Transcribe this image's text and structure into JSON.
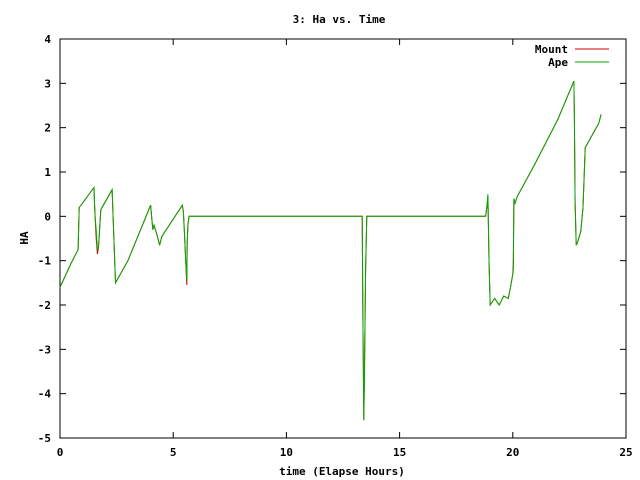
{
  "chart_data": {
    "type": "line",
    "title": "3: Ha vs. Time",
    "xlabel": "time (Elapse Hours)",
    "ylabel": "HA",
    "xlim": [
      0,
      25
    ],
    "ylim": [
      -5,
      4
    ],
    "xticks": [
      0,
      5,
      10,
      15,
      20,
      25
    ],
    "yticks": [
      -5,
      -4,
      -3,
      -2,
      -1,
      0,
      1,
      2,
      3,
      4
    ],
    "grid": false,
    "legend_position": "top-right",
    "series": [
      {
        "name": "Mount",
        "color": "#cc0000",
        "x": [
          0,
          0.5,
          0.8,
          0.85,
          1.0,
          1.5,
          1.52,
          1.55,
          1.6,
          1.65,
          1.7,
          1.8,
          2.3,
          2.38,
          2.45,
          3.0,
          4.0,
          4.1,
          4.15,
          4.3,
          4.4,
          4.5,
          5.4,
          5.45,
          5.5,
          5.55,
          5.6,
          5.62,
          5.65,
          5.7,
          5.72,
          10.0,
          13.35,
          13.38,
          13.42,
          13.45,
          13.5,
          13.55,
          13.6,
          18.8,
          18.85,
          18.9,
          18.95,
          19.0,
          19.2,
          19.4,
          19.6,
          19.8,
          19.9,
          20.0,
          20.02,
          20.05,
          20.1,
          20.2,
          21.0,
          22.0,
          22.7,
          22.72,
          22.75,
          22.78,
          22.8,
          22.85,
          23.0,
          23.1,
          23.2,
          23.8,
          23.9
        ],
        "y": [
          -1.6,
          -1.05,
          -0.75,
          0.2,
          0.3,
          0.65,
          0.35,
          0.0,
          -0.5,
          -0.85,
          -0.7,
          0.15,
          0.6,
          -0.5,
          -1.5,
          -1.0,
          0.25,
          -0.3,
          -0.2,
          -0.45,
          -0.65,
          -0.45,
          0.25,
          0.1,
          -0.4,
          -1.0,
          -1.55,
          -0.6,
          -0.2,
          0.0,
          0.0,
          0.0,
          0.0,
          -2.3,
          -4.6,
          -3.5,
          -1.2,
          0.0,
          0.0,
          0.0,
          0.2,
          0.45,
          -1.0,
          -2.0,
          -1.85,
          -2.0,
          -1.8,
          -1.85,
          -1.6,
          -1.3,
          -1.2,
          0.4,
          0.3,
          0.45,
          1.2,
          2.2,
          3.05,
          2.2,
          0.3,
          -0.2,
          -0.65,
          -0.6,
          -0.35,
          0.2,
          1.55,
          2.1,
          2.3
        ]
      },
      {
        "name": "Ape",
        "color": "#00aa00",
        "x": [
          0,
          0.5,
          0.8,
          0.85,
          1.0,
          1.5,
          1.52,
          1.55,
          1.6,
          1.65,
          1.7,
          1.8,
          2.3,
          2.38,
          2.45,
          3.0,
          4.0,
          4.1,
          4.15,
          4.3,
          4.4,
          4.5,
          5.4,
          5.45,
          5.5,
          5.55,
          5.6,
          5.62,
          5.65,
          5.7,
          5.72,
          10.0,
          13.35,
          13.38,
          13.42,
          13.45,
          13.5,
          13.55,
          13.6,
          18.8,
          18.85,
          18.9,
          18.95,
          19.0,
          19.2,
          19.4,
          19.6,
          19.8,
          19.9,
          20.0,
          20.02,
          20.05,
          20.1,
          20.2,
          21.0,
          22.0,
          22.7,
          22.72,
          22.75,
          22.78,
          22.8,
          22.85,
          23.0,
          23.1,
          23.2,
          23.8,
          23.9
        ],
        "y": [
          -1.6,
          -1.05,
          -0.75,
          0.2,
          0.3,
          0.65,
          0.35,
          0.0,
          -0.3,
          -0.75,
          -0.7,
          0.15,
          0.6,
          -0.5,
          -1.5,
          -1.0,
          0.25,
          -0.3,
          -0.2,
          -0.45,
          -0.65,
          -0.45,
          0.25,
          0.1,
          -0.4,
          -1.0,
          -1.45,
          -0.6,
          -0.2,
          0.0,
          0.0,
          0.0,
          0.0,
          -2.3,
          -4.6,
          -3.5,
          -1.2,
          0.0,
          0.0,
          0.0,
          0.2,
          0.5,
          -1.0,
          -2.0,
          -1.85,
          -2.0,
          -1.8,
          -1.85,
          -1.6,
          -1.3,
          -1.0,
          0.4,
          0.3,
          0.45,
          1.2,
          2.2,
          3.05,
          2.2,
          0.3,
          -0.2,
          -0.65,
          -0.6,
          -0.35,
          0.2,
          1.55,
          2.1,
          2.3
        ]
      }
    ]
  }
}
